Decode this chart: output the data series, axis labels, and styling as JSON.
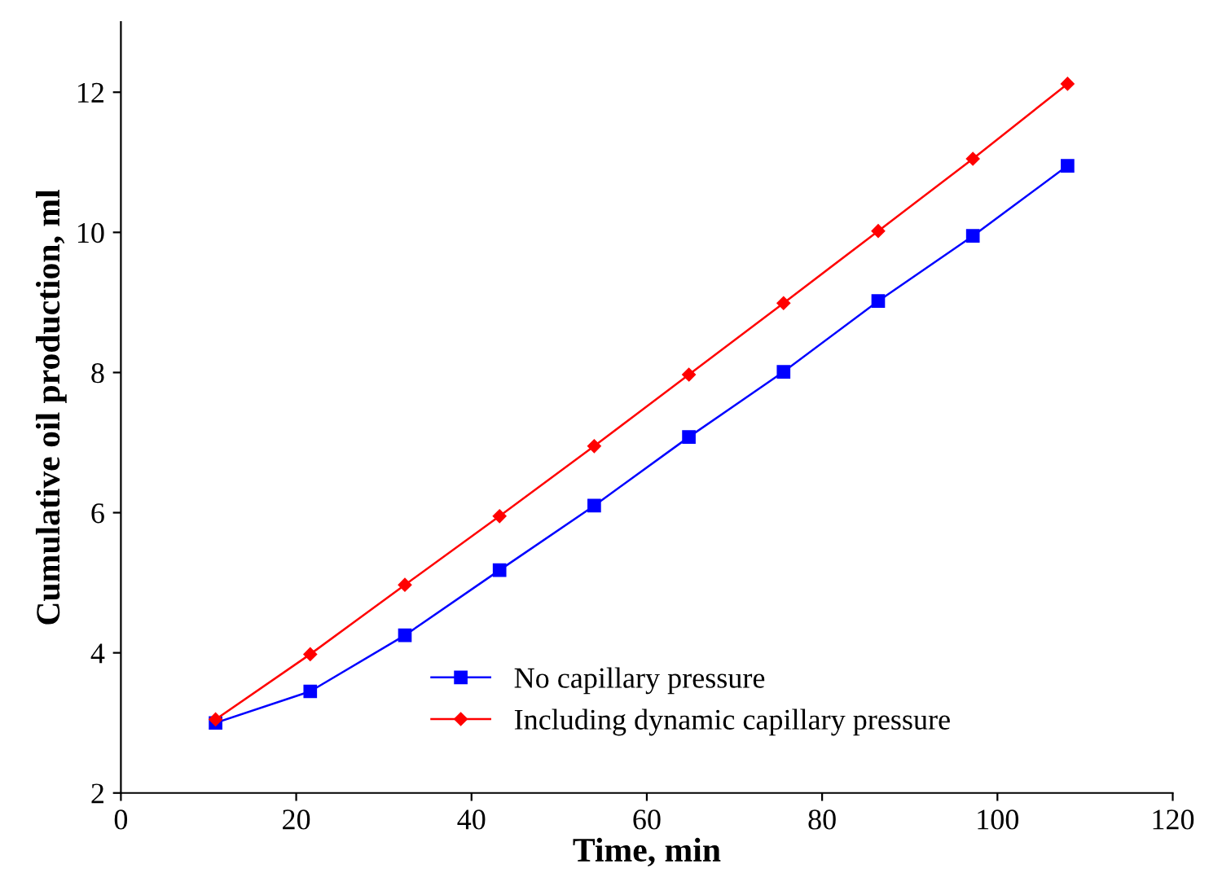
{
  "chart_data": {
    "type": "line",
    "xlabel": "Time, min",
    "ylabel": "Cumulative oil production, ml",
    "x": [
      10.8,
      21.6,
      32.4,
      43.2,
      54,
      64.8,
      75.6,
      86.4,
      97.2,
      108
    ],
    "series": [
      {
        "name": "No capillary pressure",
        "color": "#0000ff",
        "marker": "square",
        "values": [
          3.0,
          3.45,
          4.25,
          5.18,
          6.1,
          7.08,
          8.01,
          9.02,
          9.95,
          10.95
        ]
      },
      {
        "name": "Including dynamic capillary pressure",
        "color": "#ff0000",
        "marker": "diamond",
        "values": [
          3.05,
          3.98,
          4.97,
          5.95,
          6.95,
          7.97,
          8.99,
          10.02,
          11.05,
          12.12
        ]
      }
    ],
    "xlim": [
      0,
      120
    ],
    "xticks": [
      0,
      20,
      40,
      60,
      80,
      100,
      120
    ],
    "ylim": [
      2,
      13
    ],
    "yticks": [
      2,
      4,
      6,
      8,
      10,
      12
    ],
    "grid": false,
    "legend": "bottom right",
    "line_style": "solid"
  }
}
